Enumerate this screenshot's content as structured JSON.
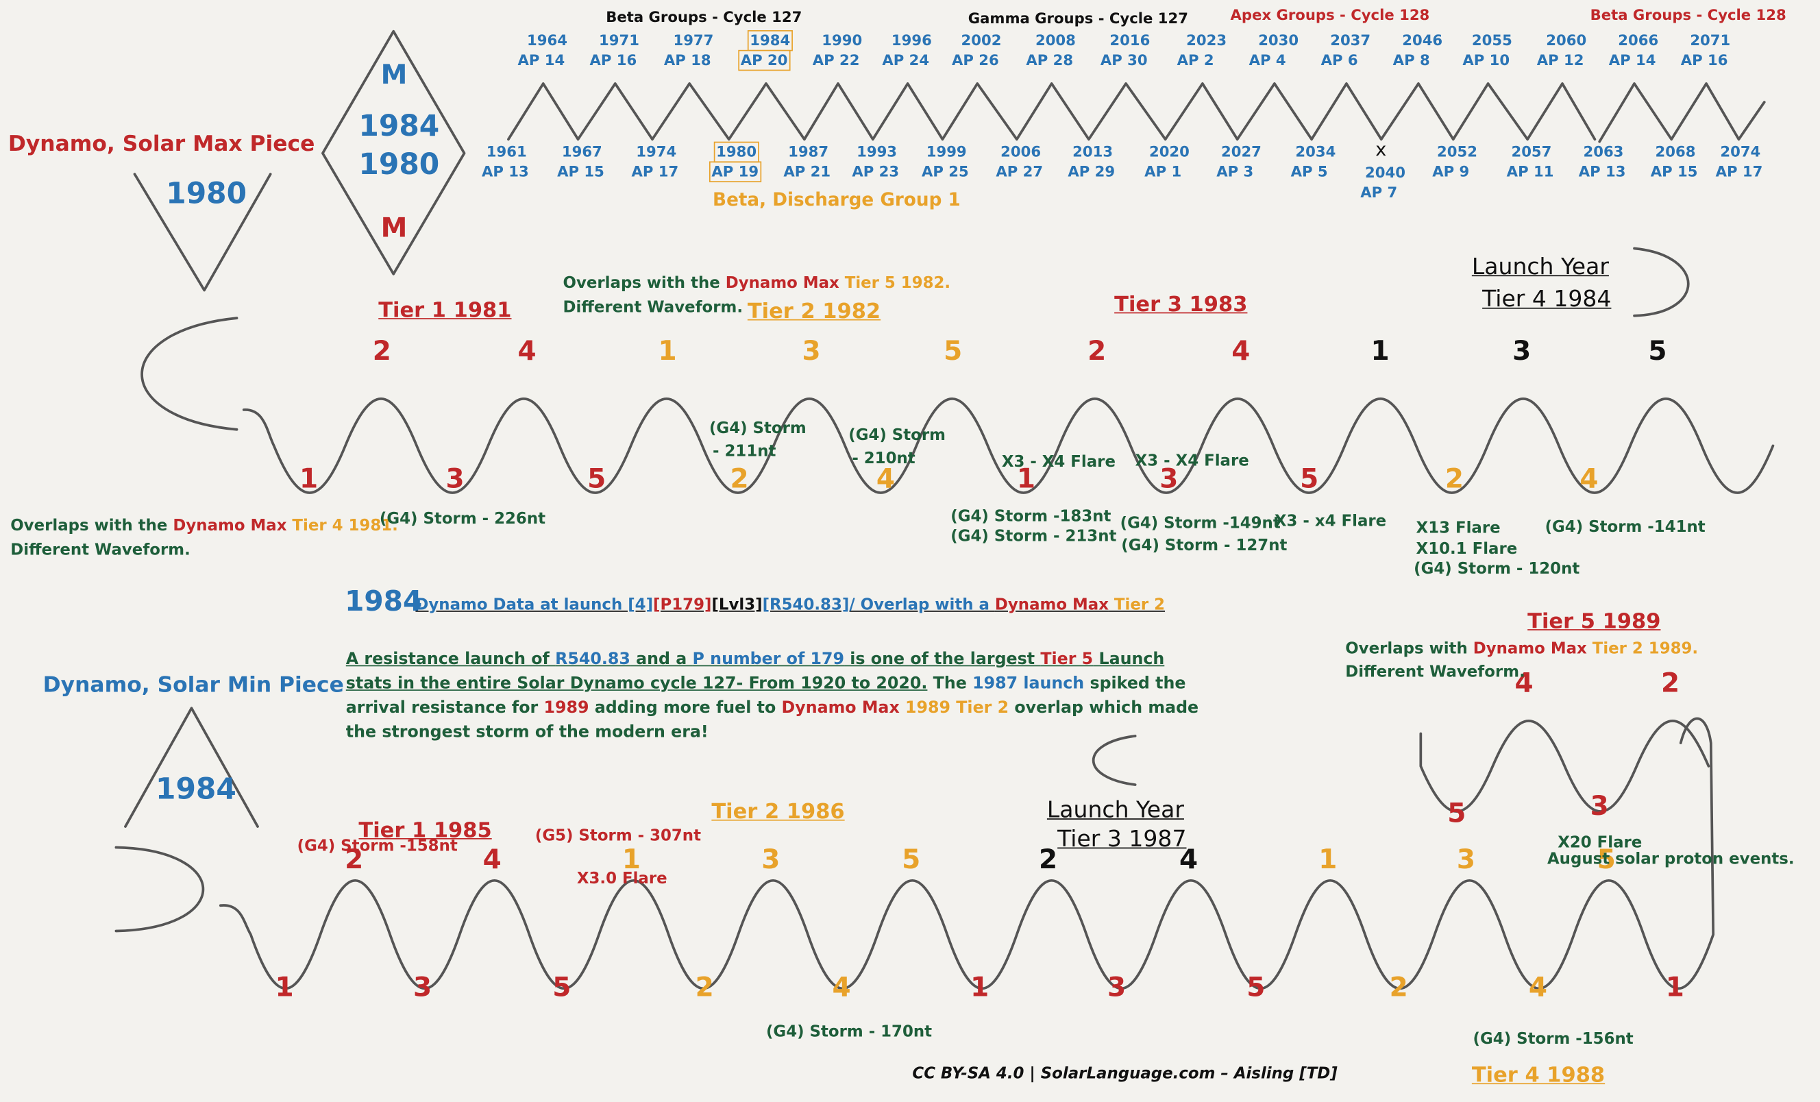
{
  "colors": {
    "red": "#c0282a",
    "blue": "#2a74b5",
    "orange": "#e8a22a",
    "green": "#1e5e3a",
    "ink": "#555555"
  },
  "group_headers": {
    "beta": "Beta Groups - Cycle 127",
    "gamma": "Gamma Groups - Cycle 127",
    "apex": "Apex Groups - Cycle 128",
    "beta128": "Beta Groups - Cycle 128"
  },
  "top_wave": {
    "peaks": [
      [
        "1964",
        "AP 14"
      ],
      [
        "1971",
        "AP 16"
      ],
      [
        "1977",
        "AP 18"
      ],
      [
        "1984",
        "AP 20"
      ],
      [
        "1990",
        "AP 22"
      ],
      [
        "1996",
        "AP 24"
      ],
      [
        "2002",
        "AP 26"
      ],
      [
        "2008",
        "AP 28"
      ],
      [
        "2016",
        "AP 30"
      ],
      [
        "2023",
        "AP 2"
      ],
      [
        "2030",
        "AP 4"
      ],
      [
        "2037",
        "AP 6"
      ],
      [
        "2046",
        "AP 8"
      ],
      [
        "2055",
        "AP 10"
      ],
      [
        "2060",
        "AP 12"
      ],
      [
        "2066",
        "AP 14"
      ],
      [
        "2071",
        "AP 16"
      ]
    ],
    "troughs": [
      [
        "1961",
        "AP 13"
      ],
      [
        "1967",
        "AP 15"
      ],
      [
        "1974",
        "AP 17"
      ],
      [
        "1980",
        "AP 19"
      ],
      [
        "1987",
        "AP 21"
      ],
      [
        "1993",
        "AP 23"
      ],
      [
        "1999",
        "AP 25"
      ],
      [
        "2006",
        "AP 27"
      ],
      [
        "2013",
        "AP 29"
      ],
      [
        "2020",
        "AP 1"
      ],
      [
        "2027",
        "AP 3"
      ],
      [
        "2034",
        "AP 5"
      ],
      [
        "2040",
        "AP 7"
      ],
      [
        "2052",
        "AP 9"
      ],
      [
        "2057",
        "AP 11"
      ],
      [
        "2063",
        "AP 13"
      ],
      [
        "2068",
        "AP 15"
      ],
      [
        "2074",
        "AP 17"
      ]
    ],
    "x_mark": "x",
    "discharge_label": "Beta, Discharge Group 1"
  },
  "left": {
    "max_piece": "Dynamo, Solar Max Piece",
    "max_year": "1980",
    "diamond": {
      "top": "M",
      "y1": "1984",
      "y2": "1980",
      "bottom": "M"
    },
    "min_piece": "Dynamo, Solar Min Piece",
    "min_year": "1984"
  },
  "upper": {
    "tier1": "Tier 1 1981",
    "tier2": "Tier 2 1982",
    "tier3": "Tier 3 1983",
    "launch": "Launch Year",
    "tier4": "Tier 4 1984",
    "overlap_top_a": "Overlaps with the ",
    "overlap_top_b": "Dynamo Max",
    "overlap_top_c": " Tier 5 1982.",
    "overlap_top_d": "Different Waveform.",
    "overlap_left_a": "Overlaps with the ",
    "overlap_left_b": "Dynamo Max",
    "overlap_left_c": " Tier 4 1981.",
    "overlap_left_d": "Different Waveform.",
    "peak_numbers": [
      "2",
      "4",
      "1",
      "3",
      "5",
      "2",
      "4",
      "1",
      "3",
      "5"
    ],
    "trough_numbers": [
      "1",
      "3",
      "5",
      "2",
      "4",
      "1",
      "3",
      "5",
      "2",
      "4"
    ],
    "events": {
      "storm226": "(G4) Storm - 226nt",
      "storm211a": "(G4) Storm",
      "storm211b": "- 211nt",
      "storm210a": "(G4) Storm",
      "storm210b": "- 210nt",
      "flare_x3a": "X3 - X4 Flare",
      "flare_x3b": "X3 - X4 Flare",
      "storm183": "(G4) Storm -183nt",
      "storm213": "(G4) Storm - 213nt",
      "storm149": "(G4) Storm -149nt",
      "storm127": "(G4) Storm - 127nt",
      "flare_x3c": "X3 - x4 Flare",
      "flare_x13": "X13 Flare",
      "flare_x10": "X10.1 Flare",
      "storm120": "(G4) Storm - 120nt",
      "storm141": "(G4) Storm -141nt"
    }
  },
  "middle": {
    "year": "1984",
    "header_a": "Dynamo Data at launch [4]",
    "header_b": "[P179]",
    "header_c": "[Lvl3]",
    "header_d": "[R540.83]/ Overlap with a ",
    "header_e": "Dynamo Max",
    "header_f": " Tier 2",
    "p1": "A resistance launch of ",
    "p2": "R540.83",
    "p3": " and a ",
    "p4": "P number of 179",
    "p5": " is one of the largest ",
    "p6": "Tier 5",
    "p7": " Launch stats in the entire Solar Dynamo cycle 127- From 1920 to 2020.",
    "p8": "  The ",
    "p9": "1987 launch",
    "p10": " spiked the arrival resistance for ",
    "p11": "1989",
    "p12": " adding more fuel to ",
    "p13": "Dynamo Max",
    "p14": " 1989 Tier 2",
    "p15": " overlap which made the strongest storm of the modern era!"
  },
  "right": {
    "tier5": "Tier 5 1989",
    "overlap_a": "Overlaps with ",
    "overlap_b": "Dynamo Max",
    "overlap_c": " Tier 2 1989.",
    "overlap_d": "Different Waveform.",
    "peak_numbers": [
      "4",
      "2"
    ],
    "trough_numbers": [
      "5",
      "3"
    ],
    "flare": "X20 Flare",
    "proton": "August solar proton events."
  },
  "lower": {
    "tier1": "Tier 1 1985",
    "tier2": "Tier 2 1986",
    "launch": "Launch Year",
    "tier3": "Tier 3 1987",
    "tier4": "Tier 4 1988",
    "peak_numbers": [
      "2",
      "4",
      "1",
      "3",
      "5",
      "2",
      "4",
      "1",
      "3",
      "5"
    ],
    "trough_numbers": [
      "1",
      "3",
      "5",
      "2",
      "4",
      "1",
      "3",
      "5",
      "2",
      "4",
      "1"
    ],
    "storm158": "(G4) Storm -158nt",
    "storm307": "(G5) Storm - 307nt",
    "flare_x3": "X3.0 Flare",
    "storm170": "(G4) Storm - 170nt",
    "storm156": "(G4) Storm -156nt"
  },
  "footer": "CC BY-SA 4.0 | SolarLanguage.com – Aisling [TD]"
}
